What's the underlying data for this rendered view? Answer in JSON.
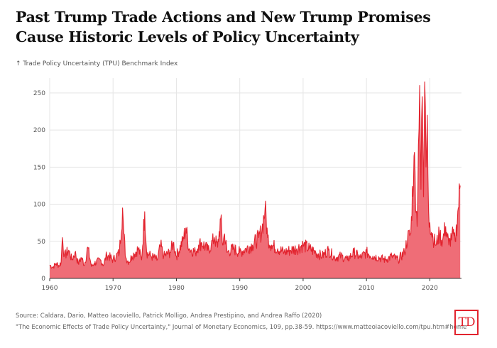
{
  "title": "Past Trump Trade Actions and New Trump Promises Cause Historic Levels of Policy Uncertainty",
  "y_axis_label": "↑ Trade Policy Uncertainty (TPU) Benchmark Index",
  "source_line1": "Source: Caldara, Dario, Matteo Iacoviello, Patrick Molligo, Andrea Prestipino, and Andrea Raffo (2020)",
  "source_line2": "\"The Economic Effects of Trade Policy Uncertainty,\" Journal of Monetary Economics, 109, pp.38-59. https://www.matteoiacoviello.com/tpu.htm#home",
  "logo_text": "TD",
  "colors": {
    "line": "#e2232e",
    "fill": "#ef6d77",
    "grid": "#e5e5e5",
    "axis": "#333333"
  },
  "chart_data": {
    "type": "area",
    "title": "Past Trump Trade Actions and New Trump Promises Cause Historic Levels of Policy Uncertainty",
    "xlabel": "",
    "ylabel": "Trade Policy Uncertainty (TPU) Benchmark Index",
    "xlim": [
      1960,
      2025
    ],
    "ylim": [
      0,
      270
    ],
    "x_ticks": [
      1960,
      1970,
      1980,
      1990,
      2000,
      2010,
      2020
    ],
    "y_ticks": [
      0,
      50,
      100,
      150,
      200,
      250
    ],
    "grid": true,
    "series": [
      {
        "name": "TPU Benchmark Index",
        "x": [
          1960,
          1960.5,
          1961,
          1961.5,
          1961.8,
          1962,
          1962.3,
          1963,
          1963.5,
          1964,
          1964.5,
          1965,
          1965.5,
          1966,
          1966.6,
          1967,
          1968,
          1968.5,
          1969,
          1970,
          1970.5,
          1971,
          1971.5,
          1971.7,
          1972,
          1972.5,
          1973,
          1974,
          1974.5,
          1975,
          1975.3,
          1976,
          1977,
          1977.5,
          1978,
          1979,
          1979.5,
          1980,
          1981,
          1981.5,
          1982,
          1983,
          1983.5,
          1984,
          1985,
          1985.5,
          1986,
          1986.5,
          1987,
          1987.3,
          1987.6,
          1988,
          1989,
          1990,
          1991,
          1992,
          1993,
          1993.5,
          1994,
          1994.4,
          1995,
          1996,
          1997,
          1998,
          1999,
          2000,
          2001,
          2002,
          2003,
          2004,
          2005,
          2006,
          2007,
          2008,
          2009,
          2010,
          2011,
          2012,
          2013,
          2014,
          2015,
          2016,
          2016.5,
          2017,
          2017.5,
          2018,
          2018.2,
          2018.4,
          2018.6,
          2018.8,
          2019,
          2019.2,
          2019.4,
          2019.6,
          2019.8,
          2020,
          2020.5,
          2021,
          2021.5,
          2022,
          2022.5,
          2023,
          2023.5,
          2024,
          2024.5,
          2024.8
        ],
        "values": [
          18,
          15,
          20,
          17,
          22,
          55,
          30,
          38,
          25,
          35,
          20,
          28,
          18,
          42,
          16,
          20,
          25,
          18,
          32,
          25,
          30,
          35,
          95,
          60,
          28,
          22,
          30,
          40,
          25,
          90,
          35,
          30,
          25,
          45,
          30,
          35,
          48,
          30,
          50,
          68,
          40,
          35,
          45,
          48,
          38,
          45,
          55,
          42,
          80,
          45,
          60,
          35,
          40,
          35,
          40,
          45,
          55,
          65,
          95,
          55,
          45,
          40,
          35,
          38,
          40,
          45,
          40,
          35,
          30,
          38,
          28,
          30,
          25,
          35,
          28,
          35,
          30,
          28,
          25,
          30,
          25,
          35,
          55,
          60,
          165,
          70,
          180,
          260,
          120,
          245,
          110,
          265,
          150,
          220,
          90,
          75,
          55,
          45,
          60,
          50,
          70,
          45,
          60,
          50,
          95,
          125
        ]
      }
    ]
  }
}
